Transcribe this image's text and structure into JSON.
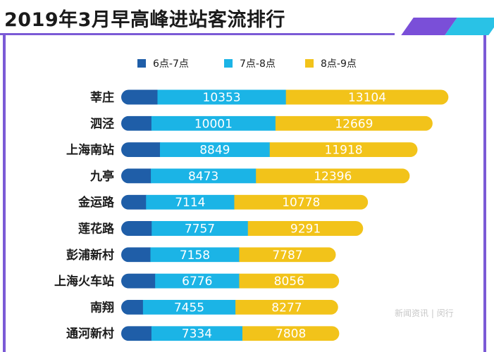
{
  "title": "2019年3月早高峰进站客流排行",
  "colors": {
    "accent_purple": "#7b5ad6",
    "accent_cyan": "#29c2e6",
    "series": [
      "#1f5ea8",
      "#1bb4e6",
      "#f2c31a"
    ],
    "value_label": "#ffffff",
    "station_label": "#1a1a1a"
  },
  "legend": [
    {
      "label": "6点-7点"
    },
    {
      "label": "7点-8点"
    },
    {
      "label": "8点-9点"
    }
  ],
  "watermark": "新闻资讯 | 闵行",
  "chart_data": {
    "type": "bar",
    "orientation": "horizontal",
    "stacked": true,
    "title": "2019年3月早高峰进站客流排行",
    "categories": [
      "莘庄",
      "泗泾",
      "上海南站",
      "九亭",
      "金运路",
      "莲花路",
      "彭浦新村",
      "上海火车站",
      "南翔",
      "通河新村"
    ],
    "series": [
      {
        "name": "6点-7点",
        "values": [
          2925,
          2436,
          3124,
          2390,
          2002,
          2456,
          2356,
          2736,
          1754,
          2437
        ]
      },
      {
        "name": "7点-8点",
        "values": [
          10353,
          10001,
          8849,
          8473,
          7114,
          7757,
          7158,
          6776,
          7455,
          7334
        ]
      },
      {
        "name": "8点-9点",
        "values": [
          13104,
          12669,
          11918,
          12396,
          10778,
          9291,
          7787,
          8056,
          8277,
          7808
        ]
      }
    ],
    "labeled_series": [
      "7点-8点",
      "8点-9点"
    ],
    "legend_position": "top",
    "grid": false
  }
}
